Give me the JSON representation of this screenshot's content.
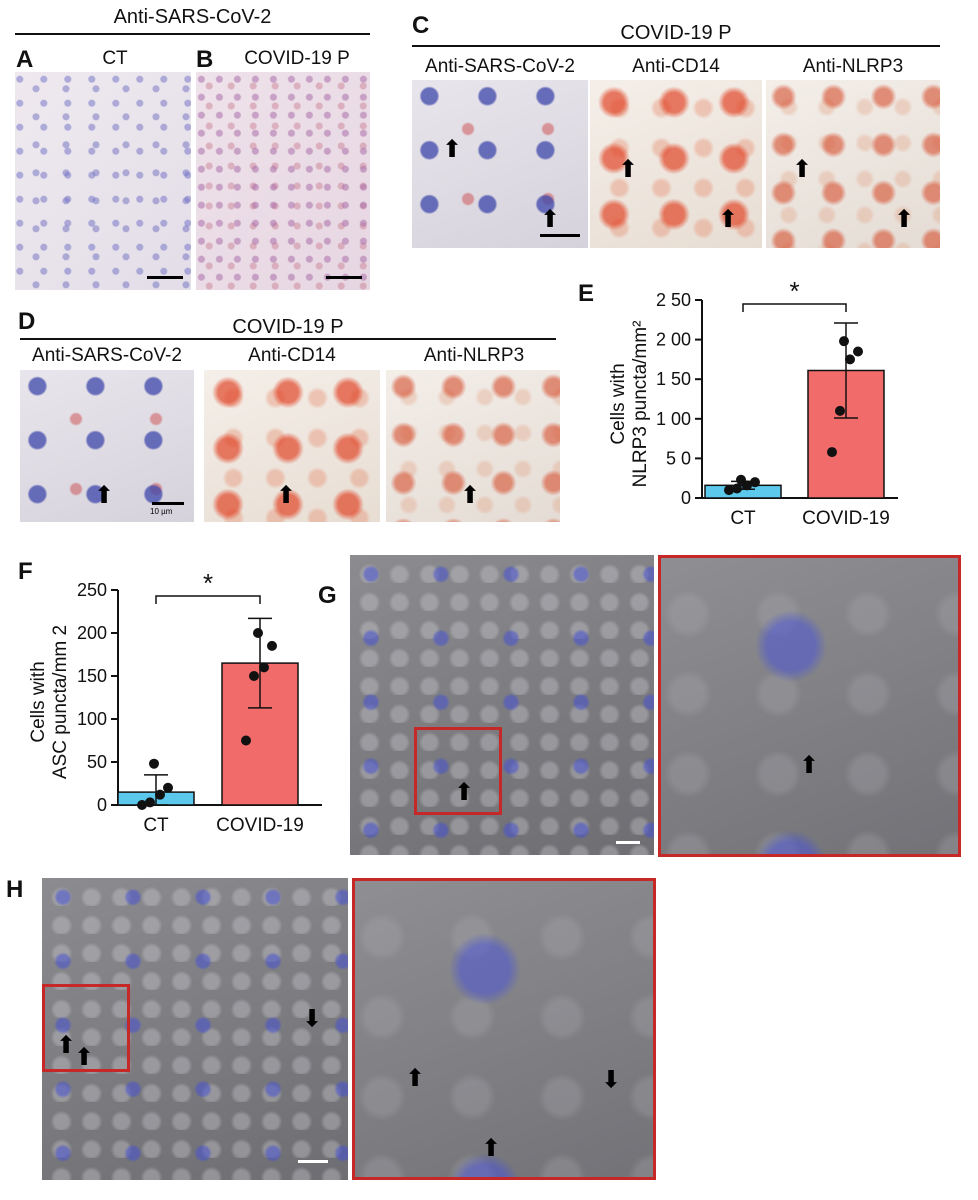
{
  "panel_labels": {
    "a": "A",
    "b": "B",
    "c": "C",
    "d": "D",
    "e": "E",
    "f": "F",
    "g": "G",
    "h": "H"
  },
  "headers": {
    "ab": "Anti-SARS-CoV-2",
    "c": "COVID-19 P",
    "d": "COVID-19 P"
  },
  "subheaders": {
    "a": "CT",
    "b": "COVID-19 P",
    "c1": "Anti-SARS-CoV-2",
    "c2": "Anti-CD14",
    "c3": "Anti-NLRP3",
    "d1": "Anti-SARS-CoV-2",
    "d2": "Anti-CD14",
    "d3": "Anti-NLRP3"
  },
  "scale_text": "10 µm",
  "arrow_glyph": "⬆",
  "chart_data": [
    {
      "type": "bar",
      "panel": "E",
      "categories": [
        "CT",
        "COVID-19"
      ],
      "values": [
        16,
        161
      ],
      "error": [
        5,
        60
      ],
      "points": [
        [
          10,
          12,
          16,
          20,
          23
        ],
        [
          58,
          110,
          175,
          185,
          198
        ]
      ],
      "ylabel_line1": "Cells with",
      "ylabel_line2": "NLRP3 puncta/mm²",
      "ylim": [
        0,
        250
      ],
      "yticks": [
        0,
        50,
        100,
        150,
        200,
        250
      ],
      "ytick_labels": [
        "0",
        "5 0",
        "1 00",
        "1 50",
        "2 00",
        "2 50"
      ],
      "significance": "*",
      "colors": [
        "#5bc8ec",
        "#f26b6b"
      ]
    },
    {
      "type": "bar",
      "panel": "F",
      "categories": [
        "CT",
        "COVID-19"
      ],
      "values": [
        15,
        165
      ],
      "error": [
        20,
        52
      ],
      "points": [
        [
          0,
          3,
          12,
          20,
          48
        ],
        [
          75,
          150,
          160,
          185,
          200
        ]
      ],
      "ylabel_line1": "Cells with",
      "ylabel_line2": "ASC puncta/mm 2",
      "ylim": [
        0,
        250
      ],
      "yticks": [
        0,
        50,
        100,
        150,
        200,
        250
      ],
      "ytick_labels": [
        "0",
        "50",
        "100",
        "150",
        "200",
        "250"
      ],
      "significance": "*",
      "colors": [
        "#5bc8ec",
        "#f26b6b"
      ]
    }
  ]
}
